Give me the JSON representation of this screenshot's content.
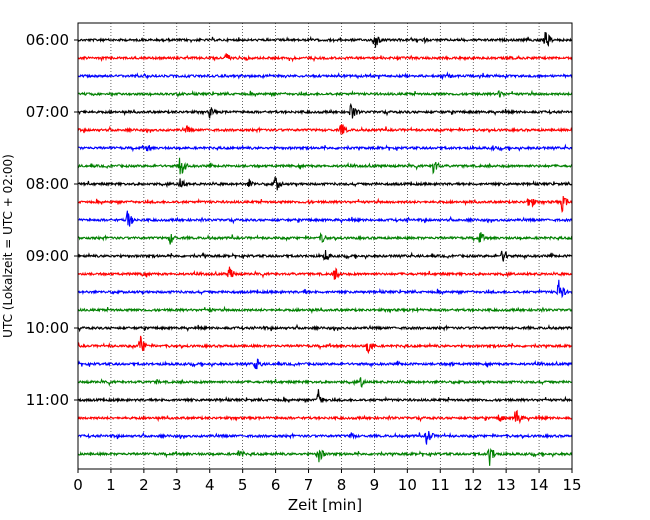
{
  "chart_data": {
    "type": "line",
    "xlabel": "Zeit  [min]",
    "ylabel": "UTC (Lokalzeit = UTC + 02:00)",
    "xlim": [
      0,
      15
    ],
    "x_ticks": [
      0,
      1,
      2,
      3,
      4,
      5,
      6,
      7,
      8,
      9,
      10,
      11,
      12,
      13,
      14,
      15
    ],
    "y_tick_labels": [
      "06:00",
      "07:00",
      "08:00",
      "09:00",
      "10:00",
      "11:00"
    ],
    "trace_interval_min": 15,
    "trace_count": 24,
    "trace_colors": [
      "#000000",
      "#ff0000",
      "#0000ff",
      "#008000"
    ],
    "grid": "vertical dotted lines at every minute",
    "traces": [
      {
        "start": "06:00",
        "events": [
          {
            "t": 9.0,
            "amp": 11
          },
          {
            "t": 14.2,
            "amp": 11
          },
          {
            "t": 10.5,
            "amp": 3
          }
        ]
      },
      {
        "start": "06:15",
        "events": [
          {
            "t": 4.5,
            "amp": 7
          },
          {
            "t": 5.1,
            "amp": 3
          }
        ]
      },
      {
        "start": "06:30",
        "events": [
          {
            "t": 2.4,
            "amp": 3
          },
          {
            "t": 11.3,
            "amp": 3
          }
        ]
      },
      {
        "start": "06:45",
        "events": [
          {
            "t": 12.8,
            "amp": 5
          }
        ]
      },
      {
        "start": "07:00",
        "events": [
          {
            "t": 0.1,
            "amp": 5
          },
          {
            "t": 4.0,
            "amp": 7
          },
          {
            "t": 8.3,
            "amp": 12
          }
        ]
      },
      {
        "start": "07:15",
        "events": [
          {
            "t": 3.3,
            "amp": 5
          },
          {
            "t": 8.0,
            "amp": 9
          },
          {
            "t": 15.0,
            "amp": 4
          }
        ]
      },
      {
        "start": "07:30",
        "events": [
          {
            "t": 2.1,
            "amp": 5
          },
          {
            "t": 12.6,
            "amp": 3
          }
        ]
      },
      {
        "start": "07:45",
        "events": [
          {
            "t": 3.1,
            "amp": 14
          },
          {
            "t": 10.8,
            "amp": 10
          }
        ]
      },
      {
        "start": "08:00",
        "events": [
          {
            "t": 3.1,
            "amp": 8
          },
          {
            "t": 5.2,
            "amp": 6
          },
          {
            "t": 6.0,
            "amp": 10
          }
        ]
      },
      {
        "start": "08:15",
        "events": [
          {
            "t": 13.7,
            "amp": 10
          },
          {
            "t": 14.7,
            "amp": 10
          },
          {
            "t": 7.0,
            "amp": 3
          }
        ]
      },
      {
        "start": "08:30",
        "events": [
          {
            "t": 1.5,
            "amp": 12
          },
          {
            "t": 10.0,
            "amp": 3
          }
        ]
      },
      {
        "start": "08:45",
        "events": [
          {
            "t": 2.8,
            "amp": 7
          },
          {
            "t": 7.4,
            "amp": 7
          },
          {
            "t": 12.2,
            "amp": 8
          }
        ]
      },
      {
        "start": "09:00",
        "events": [
          {
            "t": 3.8,
            "amp": 3
          },
          {
            "t": 7.5,
            "amp": 7
          },
          {
            "t": 12.9,
            "amp": 9
          }
        ]
      },
      {
        "start": "09:15",
        "events": [
          {
            "t": 4.6,
            "amp": 9
          },
          {
            "t": 7.8,
            "amp": 8
          },
          {
            "t": 1.9,
            "amp": 3
          }
        ]
      },
      {
        "start": "09:30",
        "events": [
          {
            "t": 14.6,
            "amp": 15
          },
          {
            "t": 6.9,
            "amp": 3
          }
        ]
      },
      {
        "start": "09:45",
        "events": [
          {
            "t": 10.3,
            "amp": 3
          },
          {
            "t": 4.0,
            "amp": 3
          }
        ]
      },
      {
        "start": "10:00",
        "events": [
          {
            "t": 5.6,
            "amp": 3
          }
        ]
      },
      {
        "start": "10:15",
        "events": [
          {
            "t": 1.9,
            "amp": 12
          },
          {
            "t": 8.8,
            "amp": 11
          }
        ]
      },
      {
        "start": "10:30",
        "events": [
          {
            "t": 5.4,
            "amp": 9
          },
          {
            "t": 11.3,
            "amp": 3
          }
        ]
      },
      {
        "start": "10:45",
        "events": [
          {
            "t": 8.6,
            "amp": 6
          },
          {
            "t": 2.4,
            "amp": 3
          }
        ]
      },
      {
        "start": "11:00",
        "events": [
          {
            "t": 7.3,
            "amp": 11
          }
        ]
      },
      {
        "start": "11:15",
        "events": [
          {
            "t": 13.3,
            "amp": 12
          },
          {
            "t": 12.8,
            "amp": 6
          }
        ]
      },
      {
        "start": "11:30",
        "events": [
          {
            "t": 8.3,
            "amp": 5
          },
          {
            "t": 10.6,
            "amp": 11
          }
        ]
      },
      {
        "start": "11:45",
        "events": [
          {
            "t": 4.9,
            "amp": 6
          },
          {
            "t": 7.3,
            "amp": 11
          },
          {
            "t": 12.5,
            "amp": 12
          }
        ]
      }
    ]
  }
}
